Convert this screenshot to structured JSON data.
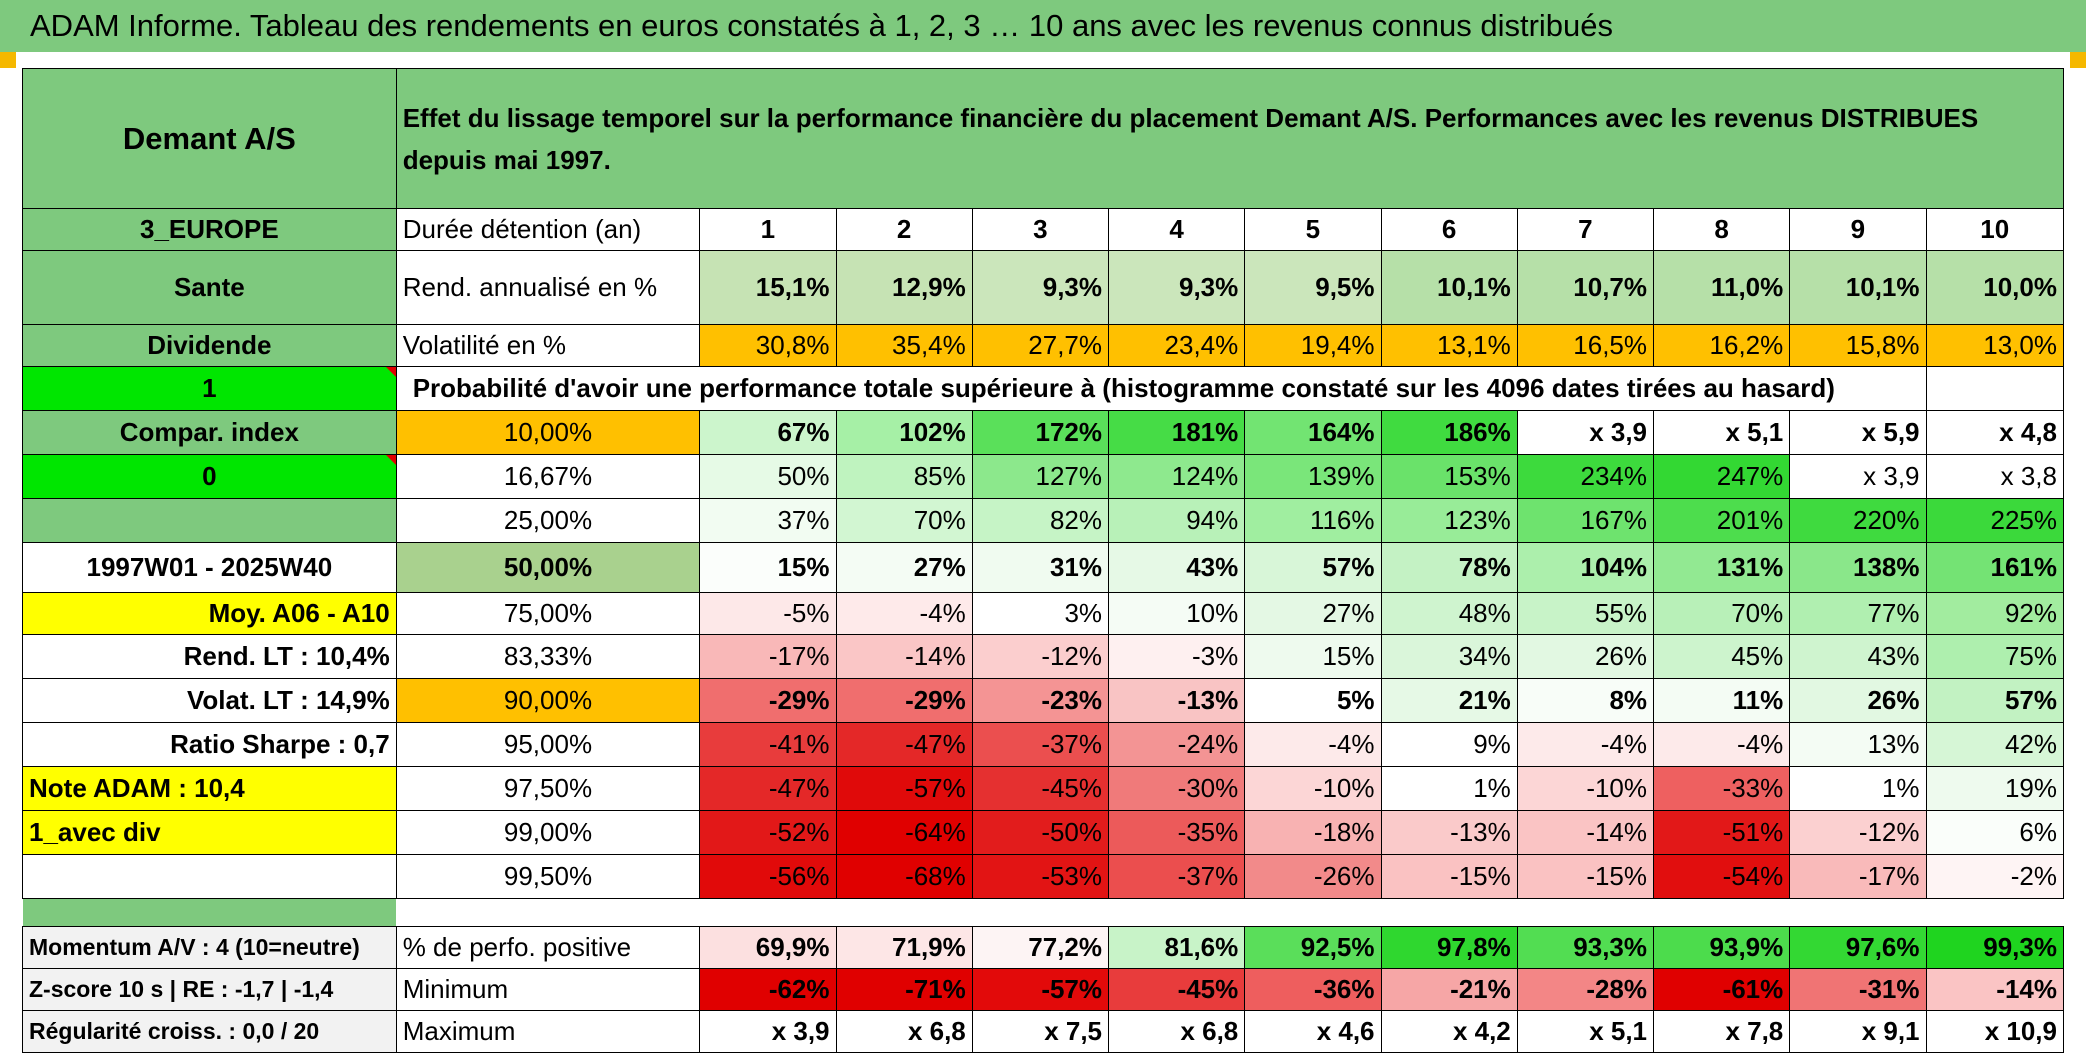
{
  "title": "ADAM Informe. Tableau des rendements en euros constatés à 1, 2, 3 … 10 ans avec les revenus connus distribués",
  "header": {
    "fund_name": "Demant A/S",
    "description": "Effet du lissage temporel sur la performance financière du placement Demant A/S. Performances avec les revenus DISTRIBUES depuis mai 1997."
  },
  "left_info": {
    "region": "3_EUROPE",
    "sector": "Sante",
    "income_type": "Dividende",
    "flag_value": "1",
    "compar_index_label": "Compar. index",
    "compar_index_value": "0",
    "period": "1997W01 - 2025W40",
    "moy_label": "Moy. A06 - A10",
    "rend_lt": "Rend. LT :    10,4%",
    "volat_lt": "Volat. LT :    14,9%",
    "sharpe": "Ratio Sharpe :    0,7",
    "note_adam": "Note ADAM : 10,4",
    "avec_div": "1_avec div",
    "momentum": "Momentum A/V : 4 (10=neutre)",
    "zscore": "Z-score 10 s | RE : -1,7 | -1,4",
    "regularite": "Régularité croiss. : 0,0 / 20"
  },
  "table": {
    "duration_label": "Durée détention (an)",
    "years": [
      "1",
      "2",
      "3",
      "4",
      "5",
      "6",
      "7",
      "8",
      "9",
      "10"
    ],
    "rend_label": "Rend. annualisé en %",
    "rend_values": [
      "15,1%",
      "12,9%",
      "9,3%",
      "9,3%",
      "9,5%",
      "10,1%",
      "10,7%",
      "11,0%",
      "10,1%",
      "10,0%"
    ],
    "volat_label": "Volatilité en %",
    "volat_values": [
      "30,8%",
      "35,4%",
      "27,7%",
      "23,4%",
      "19,4%",
      "13,1%",
      "16,5%",
      "16,2%",
      "15,8%",
      "13,0%"
    ],
    "proba_label": "Probabilité d'avoir une performance totale supérieure à (histogramme constaté sur les 4096 dates tirées au hasard)",
    "quantiles": [
      {
        "q": "10,00%",
        "values": [
          "67%",
          "102%",
          "172%",
          "181%",
          "164%",
          "186%",
          "x 3,9",
          "x 5,1",
          "x 5,9",
          "x 4,8"
        ],
        "bold": true,
        "bg": [
          "#ccf5cc",
          "#a6f0a6",
          "#5ae05a",
          "#46dc46",
          "#72e472",
          "#40db40",
          "#ffffff",
          "#ffffff",
          "#ffffff",
          "#ffffff"
        ]
      },
      {
        "q": "16,67%",
        "values": [
          "50%",
          "85%",
          "127%",
          "124%",
          "139%",
          "153%",
          "234%",
          "247%",
          "x 3,9",
          "x 3,8"
        ],
        "bold": false,
        "bg": [
          "#e6fae6",
          "#bff3bf",
          "#8ce88c",
          "#8ee98e",
          "#7ae67a",
          "#6ae26a",
          "#3dda3d",
          "#33d833",
          "#ffffff",
          "#ffffff"
        ]
      },
      {
        "q": "25,00%",
        "values": [
          "37%",
          "70%",
          "82%",
          "94%",
          "116%",
          "123%",
          "167%",
          "201%",
          "220%",
          "225%"
        ],
        "bold": false,
        "bg": [
          "#f2fcf2",
          "#d2f6d2",
          "#c6f4c6",
          "#b8f1b8",
          "#a0eea0",
          "#98ec98",
          "#6ee36e",
          "#4ddd4d",
          "#3fda3f",
          "#3bd93b"
        ]
      },
      {
        "q": "50,00%",
        "values": [
          "15%",
          "27%",
          "31%",
          "43%",
          "57%",
          "78%",
          "104%",
          "131%",
          "138%",
          "161%"
        ],
        "bold": true,
        "big": true,
        "bg": [
          "#fbfefb",
          "#f4fcf4",
          "#f0fbf0",
          "#e6f9e6",
          "#d8f6d8",
          "#c4f2c4",
          "#acefac",
          "#92e992",
          "#8ae78a",
          "#74e374"
        ]
      },
      {
        "q": "75,00%",
        "values": [
          "-5%",
          "-4%",
          "3%",
          "10%",
          "27%",
          "48%",
          "55%",
          "70%",
          "77%",
          "92%"
        ],
        "bold": false,
        "bg": [
          "#fde8e8",
          "#feeaea",
          "#ffffff",
          "#f5fcf5",
          "#e4f8e4",
          "#cff4cf",
          "#c8f3c8",
          "#b8f0b8",
          "#b0efb0",
          "#a2ec9f"
        ]
      },
      {
        "q": "83,33%",
        "values": [
          "-17%",
          "-14%",
          "-12%",
          "-3%",
          "15%",
          "34%",
          "26%",
          "45%",
          "43%",
          "75%"
        ],
        "bold": false,
        "bg": [
          "#f9b8b8",
          "#fac6c6",
          "#fbcece",
          "#fef0f0",
          "#eefaee",
          "#daf6da",
          "#e2f8e2",
          "#cdf4cd",
          "#cff4cf",
          "#aeefae"
        ]
      },
      {
        "q": "90,00%",
        "values": [
          "-29%",
          "-29%",
          "-23%",
          "-13%",
          "5%",
          "21%",
          "8%",
          "11%",
          "26%",
          "57%"
        ],
        "bold": true,
        "bg": [
          "#f06e6e",
          "#f06e6e",
          "#f49494",
          "#f9c4c4",
          "#ffffff",
          "#e6f9e6",
          "#f8fdf8",
          "#f4fcf4",
          "#e2f8e2",
          "#c2f2c2"
        ]
      },
      {
        "q": "95,00%",
        "values": [
          "-41%",
          "-47%",
          "-37%",
          "-24%",
          "-4%",
          "9%",
          "-4%",
          "-4%",
          "13%",
          "42%"
        ],
        "bold": false,
        "bg": [
          "#e83c3c",
          "#e42828",
          "#eb4f4f",
          "#f39494",
          "#fdeaea",
          "#ffffff",
          "#fdeaea",
          "#fdeaea",
          "#f4fcf4",
          "#d6f6d6"
        ]
      },
      {
        "q": "97,50%",
        "values": [
          "-47%",
          "-57%",
          "-45%",
          "-30%",
          "-10%",
          "1%",
          "-10%",
          "-33%",
          "1%",
          "19%"
        ],
        "bold": false,
        "bg": [
          "#e42828",
          "#e00a0a",
          "#e53030",
          "#f07a7a",
          "#fcd6d6",
          "#ffffff",
          "#fcd6d6",
          "#ee6060",
          "#ffffff",
          "#eefaee"
        ]
      },
      {
        "q": "99,00%",
        "values": [
          "-52%",
          "-64%",
          "-50%",
          "-35%",
          "-18%",
          "-13%",
          "-14%",
          "-51%",
          "-12%",
          "6%"
        ],
        "bold": false,
        "bg": [
          "#e21818",
          "#e00000",
          "#e21c1c",
          "#ec5a5a",
          "#f8b2b2",
          "#facaca",
          "#fac4c4",
          "#e21818",
          "#fbd0d0",
          "#fafefa"
        ]
      },
      {
        "q": "99,50%",
        "values": [
          "-56%",
          "-68%",
          "-53%",
          "-37%",
          "-26%",
          "-15%",
          "-15%",
          "-54%",
          "-17%",
          "-2%"
        ],
        "bold": false,
        "bg": [
          "#e10a0a",
          "#e00000",
          "#e21414",
          "#eb4e4e",
          "#f28a8a",
          "#fac2c2",
          "#fac2c2",
          "#e10e0e",
          "#f9baba",
          "#fef4f4"
        ]
      }
    ],
    "positive_label": "% de perfo. positive",
    "positive_values": [
      "69,9%",
      "71,9%",
      "77,2%",
      "81,6%",
      "92,5%",
      "97,8%",
      "93,3%",
      "93,9%",
      "97,6%",
      "99,3%"
    ],
    "positive_bg": [
      "#fce0e0",
      "#fde6e6",
      "#fdf4f4",
      "#c8f3c8",
      "#5ade5a",
      "#2fd72f",
      "#52dd52",
      "#4cdc4c",
      "#33d833",
      "#1fd41f"
    ],
    "min_label": "Minimum",
    "min_values": [
      "-62%",
      "-71%",
      "-57%",
      "-45%",
      "-36%",
      "-21%",
      "-28%",
      "-61%",
      "-31%",
      "-14%"
    ],
    "min_bg": [
      "#e00000",
      "#e00000",
      "#e20a0a",
      "#e83c3c",
      "#ee5e5e",
      "#f6a6a6",
      "#f38686",
      "#e00000",
      "#f07474",
      "#fac4c4"
    ],
    "max_label": "Maximum",
    "max_values": [
      "x 3,9",
      "x 6,8",
      "x 7,5",
      "x 6,8",
      "x 4,6",
      "x 4,2",
      "x 5,1",
      "x 7,8",
      "x 9,1",
      "x 10,9"
    ]
  },
  "colors": {
    "header_green": "#7ec97e",
    "lime": "#00e600",
    "yellow": "#ffff00",
    "orange": "#ffc000",
    "rend_row_bg": [
      "#c6e3b4",
      "#c6e3b4",
      "#cbe6bb",
      "#cbe6bb",
      "#cbe6bb",
      "#b6e0a8",
      "#b6e0a8",
      "#b6e0a8",
      "#b6e0a8",
      "#b6e0a8"
    ],
    "volat_row_bg": [
      "#ffc000",
      "#ffc000",
      "#ffc000",
      "#ffc000",
      "#ffc000",
      "#ffc000",
      "#ffc000",
      "#ffc000",
      "#ffc000",
      "#ffc000"
    ]
  }
}
